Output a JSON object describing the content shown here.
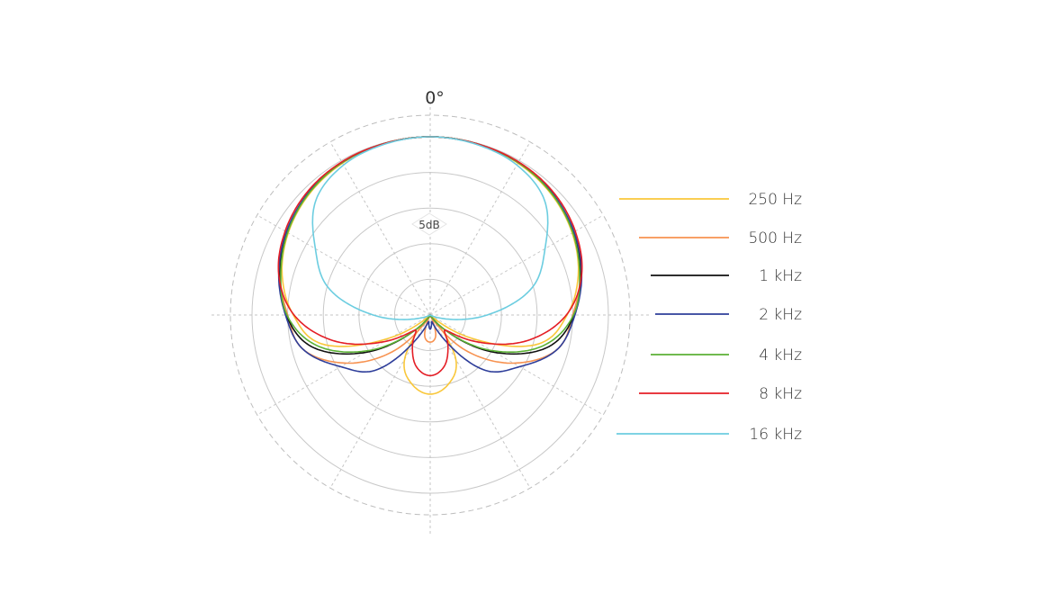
{
  "chart_data": {
    "type": "polar-line",
    "title": "",
    "angle_label": "0°",
    "ring_label": "5dB",
    "angle_unit": "degrees",
    "radial_unit": "dB",
    "radial_range": [
      -25,
      0
    ],
    "ring_step_db": 5,
    "spoke_step_deg": 30,
    "grid": true,
    "legend_position": "right",
    "symmetric": true,
    "angles": [
      0,
      15,
      30,
      45,
      60,
      75,
      90,
      105,
      120,
      135,
      150,
      165,
      180
    ],
    "series": [
      {
        "name": "250 Hz",
        "color": "#f9c73a",
        "values": [
          0,
          -0.1,
          -0.4,
          -1.0,
          -2.0,
          -3.5,
          -5.8,
          -9.3,
          -18.7,
          -25,
          -17.8,
          -15,
          -13.9
        ]
      },
      {
        "name": "500 Hz",
        "color": "#f79250",
        "values": [
          0,
          -0.1,
          -0.3,
          -0.8,
          -1.8,
          -3.2,
          -5.0,
          -6.5,
          -11.5,
          -18,
          -25,
          -22,
          -21.2
        ]
      },
      {
        "name": "1 kHz",
        "color": "#111111",
        "values": [
          0,
          -0.1,
          -0.3,
          -0.8,
          -1.8,
          -3.2,
          -4.8,
          -7.8,
          -14.5,
          -22,
          -25,
          -25,
          -25
        ]
      },
      {
        "name": "2 kHz",
        "color": "#2e3e9a",
        "values": [
          0,
          -0.1,
          -0.3,
          -0.8,
          -1.7,
          -3.0,
          -4.7,
          -6.5,
          -10.5,
          -14,
          -21,
          -24,
          -23
        ]
      },
      {
        "name": "4 kHz",
        "color": "#5bb135",
        "values": [
          0,
          -0.1,
          -0.3,
          -0.9,
          -1.9,
          -3.3,
          -4.9,
          -8.5,
          -15,
          -22,
          -25,
          -25,
          -25
        ]
      },
      {
        "name": "8 kHz",
        "color": "#e41e26",
        "values": [
          0,
          -0.1,
          -0.2,
          -0.6,
          -1.5,
          -3.0,
          -5.9,
          -11,
          -17.5,
          -22,
          -20,
          -17.5,
          -16.5
        ]
      },
      {
        "name": "16 kHz",
        "color": "#6ccde0",
        "values": [
          0,
          -0.2,
          -0.7,
          -2.3,
          -6.4,
          -10.2,
          -17,
          -23,
          -25,
          -25,
          -25,
          -25,
          -25
        ]
      }
    ]
  }
}
